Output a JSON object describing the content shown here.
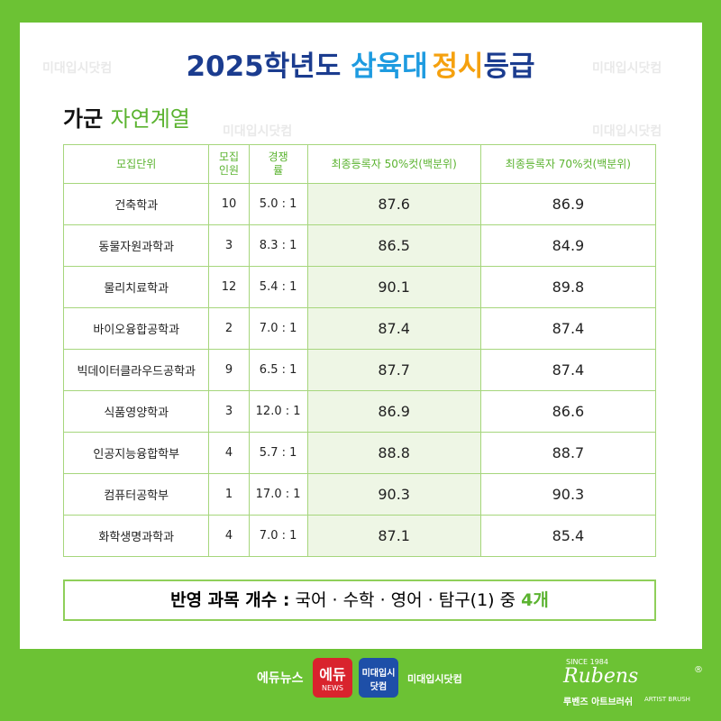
{
  "title": {
    "year": "2025학년도",
    "school": "삼육대",
    "kind": "정시",
    "suffix": "등급"
  },
  "subtitle": {
    "group": "가군",
    "field": "자연계열"
  },
  "watermark": "미대입시닷컴",
  "table": {
    "header": [
      "모집단위",
      "모집\n인원",
      "경쟁\n률",
      "최종등록자 50%컷(백분위)",
      "최종등록자 70%컷(백분위)"
    ],
    "rows": [
      [
        "건축학과",
        10,
        "5.0 : 1",
        87.6,
        86.9
      ],
      [
        "동물자원과학과",
        3,
        "8.3 : 1",
        86.5,
        84.9
      ],
      [
        "물리치료학과",
        12,
        "5.4 : 1",
        90.1,
        89.8
      ],
      [
        "바이오융합공학과",
        2,
        "7.0 : 1",
        87.4,
        87.4
      ],
      [
        "빅데이터클라우드공학과",
        9,
        "6.5 : 1",
        87.7,
        87.4
      ],
      [
        "식품영양학과",
        3,
        "12.0 : 1",
        86.9,
        86.6
      ],
      [
        "인공지능융합학부",
        4,
        "5.7 : 1",
        88.8,
        88.7
      ],
      [
        "컴퓨터공학부",
        1,
        "17.0 : 1",
        90.3,
        90.3
      ],
      [
        "화학생명과학과",
        4,
        "7.0 : 1",
        87.1,
        85.4
      ]
    ]
  },
  "note": {
    "label": "반영 과목 개수 :",
    "subjects": "국어 · 수학 · 영어 · 탐구(1) 중",
    "count": "4개"
  },
  "footer": {
    "edunews": "에듀뉴스",
    "edu": "에듀",
    "news": "NEWS",
    "mdae1": "미대입시",
    "mdae2": "닷컴",
    "mdae": "미대입시닷컴",
    "since": "SINCE 1984",
    "rubens": "Rubens",
    "reg": "®",
    "rubens_kr": "루벤즈 아트브러쉬",
    "brush": "ARTIST BRUSH"
  }
}
